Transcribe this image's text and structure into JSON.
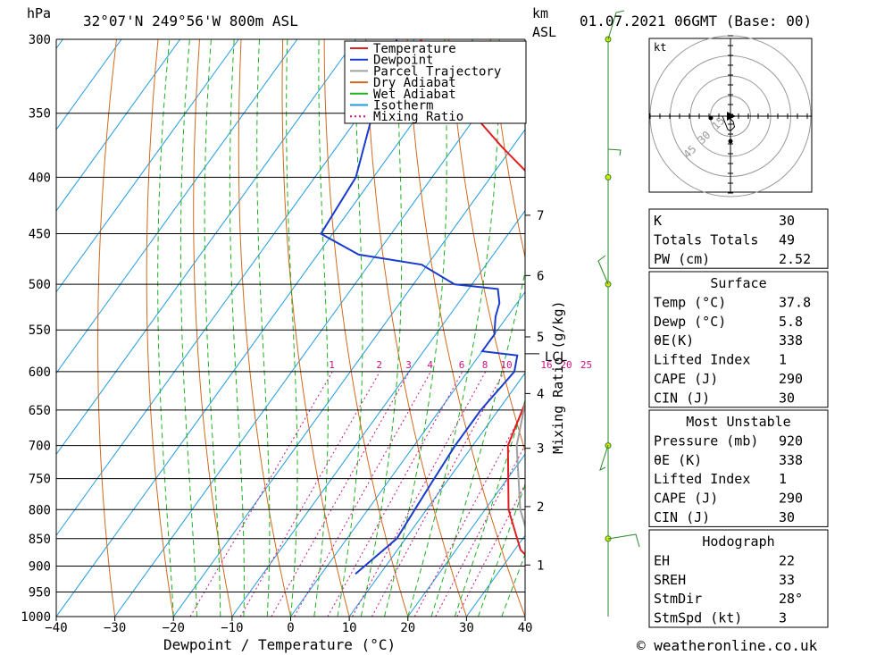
{
  "header": {
    "location": "32°07'N 249°56'W 800m ASL",
    "datetime": "01.07.2021 06GMT (Base: 00)",
    "hpa_label": "hPa",
    "km_label": "km",
    "asl_label": "ASL"
  },
  "footer": {
    "credit": "© weatheronline.co.uk"
  },
  "chart_data": {
    "type": "line",
    "xlabel": "Dewpoint / Temperature (°C)",
    "ylabel": "hPa",
    "xlim": [
      -40,
      40
    ],
    "ylim": [
      1000,
      300
    ],
    "x_ticks": [
      -40,
      -30,
      -20,
      -10,
      0,
      10,
      20,
      30,
      40
    ],
    "pressure_ticks": [
      300,
      350,
      400,
      450,
      500,
      550,
      600,
      650,
      700,
      750,
      800,
      850,
      900,
      950,
      1000
    ],
    "km_ticks": [
      {
        "label": "1",
        "p": 898
      },
      {
        "label": "2",
        "p": 795
      },
      {
        "label": "3",
        "p": 704
      },
      {
        "label": "4",
        "p": 628
      },
      {
        "label": "5",
        "p": 558
      },
      {
        "label": "6",
        "p": 491
      },
      {
        "label": "7",
        "p": 433
      }
    ],
    "lcl": {
      "label": "LCL",
      "p": 578
    },
    "mixing_ratio_axis_label": "Mixing Ratio (g/kg)",
    "mixing_ratio_labels": [
      "1",
      "2",
      "3",
      "4",
      "6",
      "8",
      "10",
      "16",
      "20",
      "25"
    ],
    "mixing_ratio_values": [
      1,
      2,
      3,
      4,
      6,
      8,
      10,
      16,
      20,
      25
    ],
    "legend": [
      "Temperature",
      "Dewpoint",
      "Parcel Trajectory",
      "Dry Adiabat",
      "Wet Adiabat",
      "Isotherm",
      "Mixing Ratio"
    ],
    "legend_colors": [
      "#e02020",
      "#1a3ccc",
      "#a0a0a0",
      "#d2691e",
      "#20b020",
      "#1e9be0",
      "#c8147f"
    ],
    "legend_placement": "top-center",
    "series": [
      {
        "name": "Temperature",
        "points": [
          [
            39.0,
            920
          ],
          [
            37.8,
            915
          ],
          [
            36.5,
            905
          ],
          [
            31,
            870
          ],
          [
            24,
            800
          ],
          [
            16,
            700
          ],
          [
            12,
            600
          ],
          [
            11,
            580
          ],
          [
            10.5,
            560
          ],
          [
            9,
            550
          ],
          [
            7.5,
            535
          ],
          [
            7,
            525
          ],
          [
            6.5,
            515
          ],
          [
            6,
            505
          ],
          [
            5,
            495
          ],
          [
            3,
            475
          ],
          [
            -1,
            450
          ],
          [
            -6,
            425
          ],
          [
            -13,
            400
          ],
          [
            -22,
            375
          ],
          [
            -31,
            350
          ],
          [
            -40,
            325
          ],
          [
            -49,
            300
          ]
        ]
      },
      {
        "name": "Dewpoint",
        "points": [
          [
            5.8,
            915
          ],
          [
            7,
            885
          ],
          [
            8.5,
            850
          ],
          [
            8,
            800
          ],
          [
            7.5,
            750
          ],
          [
            7,
            700
          ],
          [
            7,
            650
          ],
          [
            8,
            600
          ],
          [
            6.5,
            580
          ],
          [
            0,
            575
          ],
          [
            0,
            565
          ],
          [
            0,
            555
          ],
          [
            -1,
            545
          ],
          [
            -2,
            535
          ],
          [
            -3,
            520
          ],
          [
            -5,
            505
          ],
          [
            -13,
            500
          ],
          [
            -21,
            480
          ],
          [
            -33,
            470
          ],
          [
            -42,
            450
          ],
          [
            -43,
            400
          ],
          [
            -48,
            350
          ],
          [
            -53,
            300
          ]
        ]
      },
      {
        "name": "Parcel Trajectory",
        "points": [
          [
            37.8,
            915
          ],
          [
            33,
            870
          ],
          [
            26,
            800
          ],
          [
            17.5,
            700
          ],
          [
            13,
            630
          ],
          [
            11.5,
            578
          ],
          [
            9.5,
            550
          ],
          [
            6,
            500
          ],
          [
            0,
            450
          ],
          [
            -8,
            400
          ],
          [
            -18,
            350
          ],
          [
            -31,
            300
          ]
        ]
      }
    ],
    "colors": {
      "temperature": "#e02020",
      "dewpoint": "#1a3ccc",
      "parcel": "#a0a0a0",
      "dry_adiabat": "#d2691e",
      "wet_adiabat": "#20b020",
      "isotherm": "#1e9be0",
      "mixing_ratio": "#c8147f"
    }
  },
  "hodograph": {
    "unit_label": "kt",
    "ring_labels": [
      "15",
      "30",
      "45"
    ],
    "trace": [
      [
        0,
        2
      ],
      [
        2,
        4
      ],
      [
        3,
        8
      ],
      [
        0,
        11
      ],
      [
        -2,
        10
      ],
      [
        -6,
        0
      ]
    ]
  },
  "wind_profile": {
    "levels": [
      300,
      400,
      500,
      700,
      850
    ],
    "color": "#2a8a2a",
    "dot_color": "#e0e000"
  },
  "table": {
    "rows1": [
      {
        "label": "K",
        "value": "30"
      },
      {
        "label": "Totals Totals",
        "value": "49"
      },
      {
        "label": "PW (cm)",
        "value": "2.52"
      }
    ],
    "surface_title": "Surface",
    "surface_rows": [
      {
        "label": "Temp (°C)",
        "value": "37.8"
      },
      {
        "label": "Dewp (°C)",
        "value": "5.8"
      },
      {
        "label": "θE(K)",
        "value": "338"
      },
      {
        "label": "Lifted Index",
        "value": "1"
      },
      {
        "label": "CAPE (J)",
        "value": "290"
      },
      {
        "label": "CIN (J)",
        "value": "30"
      }
    ],
    "mu_title": "Most Unstable",
    "mu_rows": [
      {
        "label": "Pressure (mb)",
        "value": "920"
      },
      {
        "label": "θE (K)",
        "value": "338"
      },
      {
        "label": "Lifted Index",
        "value": "1"
      },
      {
        "label": "CAPE (J)",
        "value": "290"
      },
      {
        "label": "CIN (J)",
        "value": "30"
      }
    ],
    "hodo_title": "Hodograph",
    "hodo_rows": [
      {
        "label": "EH",
        "value": "22"
      },
      {
        "label": "SREH",
        "value": "33"
      },
      {
        "label": "StmDir",
        "value": "28°"
      },
      {
        "label": "StmSpd (kt)",
        "value": "3"
      }
    ]
  }
}
